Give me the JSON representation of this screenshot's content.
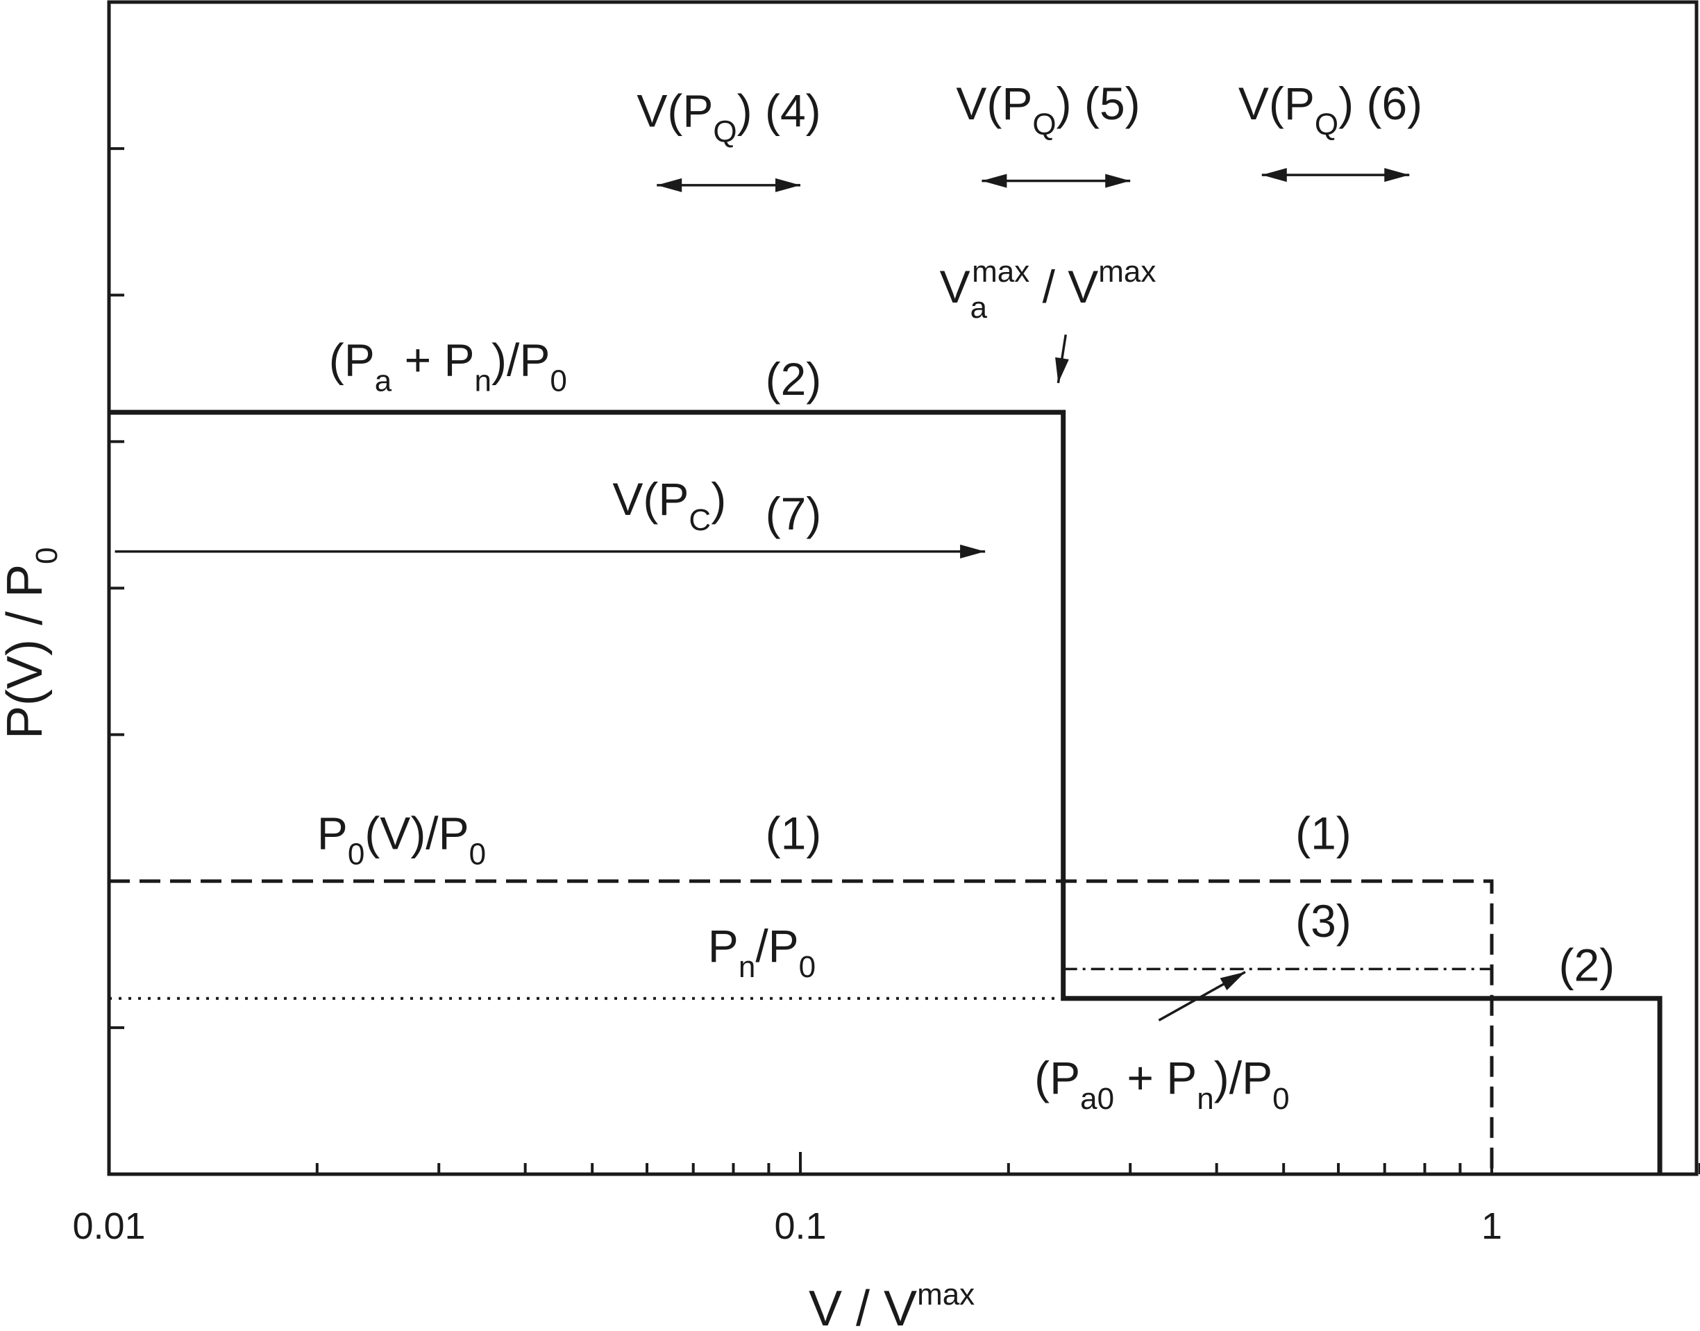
{
  "chart_data": {
    "type": "line",
    "xlabel": {
      "main": "V / V",
      "sup": "max"
    },
    "ylabel": {
      "main": "P(V) / P",
      "sub": "0"
    },
    "x_scale": "log",
    "xlim": [
      0.01,
      2.3
    ],
    "ylim": [
      0,
      8
    ],
    "x_ticks": [
      {
        "value": 0.01,
        "label": "0.01"
      },
      {
        "value": 0.1,
        "label": "0.1"
      },
      {
        "value": 1,
        "label": "1"
      }
    ],
    "x_minor_ticks": [
      0.02,
      0.03,
      0.04,
      0.05,
      0.06,
      0.07,
      0.08,
      0.09,
      0.2,
      0.3,
      0.4,
      0.5,
      0.6,
      0.7,
      0.8,
      0.9,
      2
    ],
    "y_ticks": [
      1,
      2,
      3,
      4,
      5,
      6,
      7
    ],
    "grid": false,
    "series": [
      {
        "id": "s1",
        "style": "dashed",
        "x": [
          0.01,
          1,
          1
        ],
        "y": [
          2,
          2,
          0
        ]
      },
      {
        "id": "s2",
        "style": "solid-thick",
        "x": [
          0.01,
          0.24,
          0.24,
          1.75,
          1.75
        ],
        "y": [
          5.2,
          5.2,
          1.2,
          1.2,
          0
        ]
      },
      {
        "id": "s3",
        "style": "dash-dot",
        "x": [
          0.24,
          1
        ],
        "y": [
          1.4,
          1.4
        ]
      },
      {
        "id": "s-pn",
        "style": "dotted",
        "x": [
          0.01,
          0.24
        ],
        "y": [
          1.2,
          1.2
        ]
      }
    ],
    "arrows": [
      {
        "id": "arrow-7",
        "style": "single",
        "x": [
          0.0102,
          0.185
        ],
        "y": [
          4.25,
          4.25
        ]
      },
      {
        "id": "arrow-4",
        "style": "double",
        "x": [
          0.062,
          0.1
        ],
        "y": [
          6.75,
          6.75
        ]
      },
      {
        "id": "arrow-5",
        "style": "double",
        "x": [
          0.183,
          0.3
        ],
        "y": [
          6.78,
          6.78
        ]
      },
      {
        "id": "arrow-6",
        "style": "double",
        "x": [
          0.465,
          0.76
        ],
        "y": [
          6.82,
          6.82
        ]
      },
      {
        "id": "arrow-vmax",
        "style": "single",
        "x": [
          0.242,
          0.236
        ],
        "y": [
          5.73,
          5.4
        ]
      },
      {
        "id": "arrow-pa0",
        "style": "single",
        "x": [
          0.33,
          0.44
        ],
        "y": [
          1.05,
          1.38
        ]
      }
    ],
    "annotations": {
      "vpq4": {
        "parts": [
          {
            "t": "V(P",
            "k": "main"
          },
          {
            "t": "Q",
            "k": "sub"
          },
          {
            "t": ") (4)",
            "k": "main"
          }
        ],
        "x": 0.058,
        "y": 7.15
      },
      "vpq5": {
        "parts": [
          {
            "t": "V(P",
            "k": "main"
          },
          {
            "t": "Q",
            "k": "sub"
          },
          {
            "t": ") (5)",
            "k": "main"
          }
        ],
        "x": 0.168,
        "y": 7.2
      },
      "vpq6": {
        "parts": [
          {
            "t": "V(P",
            "k": "main"
          },
          {
            "t": "Q",
            "k": "sub"
          },
          {
            "t": ") (6)",
            "k": "main"
          }
        ],
        "x": 0.43,
        "y": 7.2
      },
      "vmax": {
        "parts": [
          {
            "t": "V",
            "k": "main"
          },
          {
            "t": "a",
            "k": "sub"
          },
          {
            "t": "max",
            "k": "supback"
          },
          {
            "t": " / V",
            "k": "main"
          },
          {
            "t": "max",
            "k": "sup"
          }
        ],
        "x": 0.159,
        "y": 5.95
      },
      "pa_pn": {
        "parts": [
          {
            "t": "(P",
            "k": "main"
          },
          {
            "t": "a",
            "k": "sub"
          },
          {
            "t": " + P",
            "k": "main"
          },
          {
            "t": "n",
            "k": "sub"
          },
          {
            "t": ")/P",
            "k": "main"
          },
          {
            "t": "0",
            "k": "sub"
          }
        ],
        "x": 0.0208,
        "y": 5.45
      },
      "lab2a": {
        "parts": [
          {
            "t": "(2)",
            "k": "main"
          }
        ],
        "x": 0.089,
        "y": 5.32
      },
      "vpc": {
        "parts": [
          {
            "t": "V(P",
            "k": "main"
          },
          {
            "t": "C",
            "k": "sub"
          },
          {
            "t": ")",
            "k": "main"
          }
        ],
        "x": 0.0535,
        "y": 4.5
      },
      "lab7": {
        "parts": [
          {
            "t": "(7)",
            "k": "main"
          }
        ],
        "x": 0.089,
        "y": 4.4
      },
      "p0v": {
        "parts": [
          {
            "t": "P",
            "k": "main"
          },
          {
            "t": "0",
            "k": "sub"
          },
          {
            "t": "(V)/P",
            "k": "main"
          },
          {
            "t": "0",
            "k": "sub"
          }
        ],
        "x": 0.02,
        "y": 2.22
      },
      "lab1a": {
        "parts": [
          {
            "t": "(1)",
            "k": "main"
          }
        ],
        "x": 0.089,
        "y": 2.22
      },
      "lab1b": {
        "parts": [
          {
            "t": "(1)",
            "k": "main"
          }
        ],
        "x": 0.52,
        "y": 2.22
      },
      "pn": {
        "parts": [
          {
            "t": "P",
            "k": "main"
          },
          {
            "t": "n",
            "k": "sub"
          },
          {
            "t": "/P",
            "k": "main"
          },
          {
            "t": "0",
            "k": "sub"
          }
        ],
        "x": 0.0735,
        "y": 1.45
      },
      "lab3": {
        "parts": [
          {
            "t": "(3)",
            "k": "main"
          }
        ],
        "x": 0.52,
        "y": 1.62
      },
      "lab2b": {
        "parts": [
          {
            "t": "(2)",
            "k": "main"
          }
        ],
        "x": 1.25,
        "y": 1.32
      },
      "pa0": {
        "parts": [
          {
            "t": "(P",
            "k": "main"
          },
          {
            "t": "a0",
            "k": "sub"
          },
          {
            "t": " + P",
            "k": "main"
          },
          {
            "t": "n",
            "k": "sub"
          },
          {
            "t": ")/P",
            "k": "main"
          },
          {
            "t": "0",
            "k": "sub"
          }
        ],
        "x": 0.218,
        "y": 0.55
      }
    }
  }
}
